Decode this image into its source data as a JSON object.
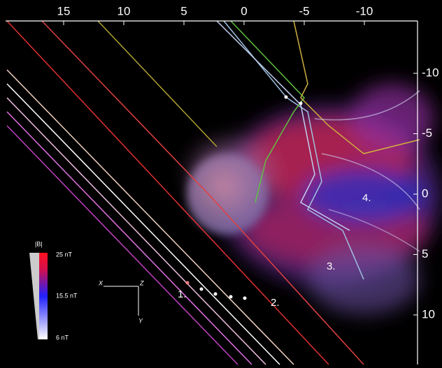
{
  "axes": {
    "top_ticks": [
      15,
      10,
      5,
      0,
      -5,
      -10
    ],
    "right_ticks": [
      -10,
      -5,
      0,
      5,
      10
    ]
  },
  "colorbar": {
    "title": "|B|",
    "labels": [
      "25 nT",
      "15.5 nT",
      "6 nT"
    ]
  },
  "triad": {
    "x": "X",
    "z": "Z",
    "y": "Y"
  },
  "annotations": [
    "1.",
    "2.",
    "3.",
    "4."
  ]
}
